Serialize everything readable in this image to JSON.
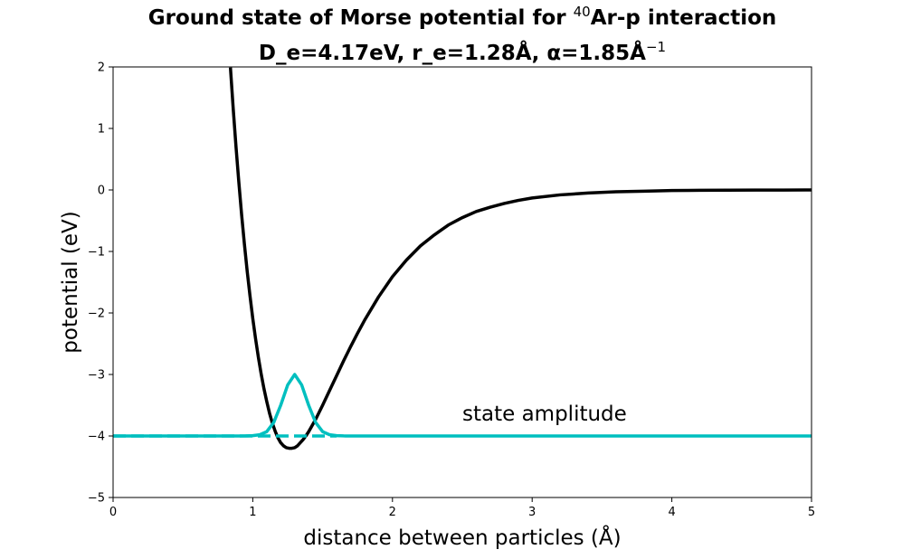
{
  "chart_data": {
    "type": "line",
    "title_line1_prefix": "Ground state of Morse potential for ",
    "title_line1_sup": "40",
    "title_line1_suffix": "Ar-p interaction",
    "title_line2_prefix": "D_e=4.17eV, r_e=1.28Å, α=1.85Å",
    "title_line2_sup": "−1",
    "xlabel": "distance between particles (Å)",
    "ylabel": "potential (eV)",
    "xlim": [
      0,
      5
    ],
    "ylim": [
      -5,
      2
    ],
    "xticks": [
      0,
      1,
      2,
      3,
      4,
      5
    ],
    "xtick_labels": [
      "0",
      "1",
      "2",
      "3",
      "4",
      "5"
    ],
    "yticks": [
      -5,
      -4,
      -3,
      -2,
      -1,
      0,
      1,
      2
    ],
    "ytick_labels": [
      "−5",
      "−4",
      "−3",
      "−2",
      "−1",
      "0",
      "1",
      "2"
    ],
    "grid": false,
    "annotation": {
      "text": "state amplitude",
      "x": 2.5,
      "y": -3.75
    },
    "series": [
      {
        "kind": "morse-potential",
        "color": "#000000",
        "x": [
          0.84,
          0.86,
          0.88,
          0.9,
          0.92,
          0.94,
          0.96,
          0.98,
          1.0,
          1.02,
          1.04,
          1.06,
          1.08,
          1.1,
          1.12,
          1.14,
          1.16,
          1.18,
          1.2,
          1.22,
          1.24,
          1.26,
          1.28,
          1.3,
          1.32,
          1.34,
          1.36,
          1.38,
          1.4,
          1.45,
          1.5,
          1.55,
          1.6,
          1.65,
          1.7,
          1.75,
          1.8,
          1.9,
          2.0,
          2.1,
          2.2,
          2.3,
          2.4,
          2.5,
          2.6,
          2.7,
          2.8,
          2.9,
          3.0,
          3.2,
          3.4,
          3.6,
          3.8,
          4.0,
          4.2,
          4.4,
          4.6,
          4.8,
          5.0
        ],
        "y": [
          1.99,
          1.32,
          0.7,
          0.13,
          -0.4,
          -0.88,
          -1.32,
          -1.72,
          -2.09,
          -2.42,
          -2.72,
          -2.99,
          -3.23,
          -3.44,
          -3.63,
          -3.79,
          -3.92,
          -4.03,
          -4.11,
          -4.16,
          -4.19,
          -4.2,
          -4.2,
          -4.19,
          -4.16,
          -4.11,
          -4.06,
          -4.0,
          -3.93,
          -3.73,
          -3.5,
          -3.26,
          -3.02,
          -2.78,
          -2.55,
          -2.33,
          -2.12,
          -1.74,
          -1.41,
          -1.14,
          -0.91,
          -0.73,
          -0.57,
          -0.45,
          -0.35,
          -0.28,
          -0.22,
          -0.17,
          -0.13,
          -0.08,
          -0.05,
          -0.03,
          -0.02,
          -0.01,
          -0.006,
          -0.004,
          -0.002,
          -0.001,
          -0.0008
        ]
      },
      {
        "kind": "ground-state-energy-level",
        "color": "#00bfbf",
        "style": "dashed",
        "x": [
          0.0,
          1.6
        ],
        "y": [
          -4.0,
          -4.0
        ]
      },
      {
        "kind": "state-amplitude",
        "color": "#00bfbf",
        "style": "solid",
        "x": [
          0.0,
          0.9,
          0.95,
          1.0,
          1.05,
          1.1,
          1.15,
          1.2,
          1.25,
          1.3,
          1.35,
          1.4,
          1.45,
          1.5,
          1.55,
          1.6,
          1.65,
          1.7,
          1.8,
          5.0
        ],
        "y": [
          -4.0,
          -4.0,
          -3.999,
          -3.995,
          -3.98,
          -3.93,
          -3.78,
          -3.5,
          -3.17,
          -3.0,
          -3.17,
          -3.5,
          -3.78,
          -3.93,
          -3.98,
          -3.995,
          -3.999,
          -4.0,
          -4.0,
          -4.0
        ]
      }
    ]
  }
}
